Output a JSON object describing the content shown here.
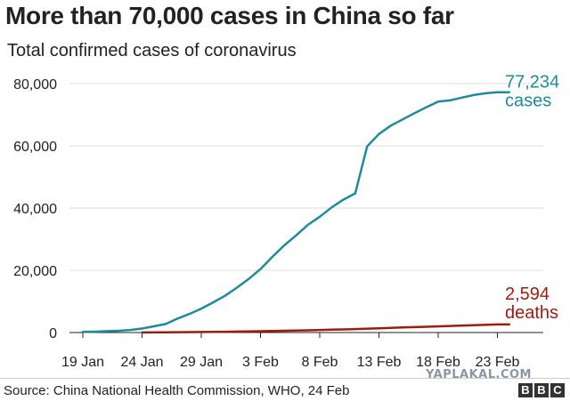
{
  "header": {
    "title": "More than 70,000 cases in China so far",
    "subtitle": "Total confirmed cases of coronavirus"
  },
  "footer": {
    "source": "Source: China National Health Commission, WHO, 24 Feb",
    "watermark": "YAPLAKAL.COM",
    "logo_letters": [
      "B",
      "B",
      "C"
    ]
  },
  "colors": {
    "cases": "#1f8a9b",
    "deaths": "#9b1d10",
    "axis": "#222222"
  },
  "chart_data": {
    "type": "line",
    "title": "More than 70,000 cases in China so far",
    "subtitle": "Total confirmed cases of coronavirus",
    "x_tick_labels": [
      "19 Jan",
      "24 Jan",
      "29 Jan",
      "3 Feb",
      "8 Feb",
      "13 Feb",
      "18 Feb",
      "23 Feb"
    ],
    "y_tick_labels": [
      "0",
      "20,000",
      "40,000",
      "60,000",
      "80,000"
    ],
    "y_ticks": [
      0,
      20000,
      40000,
      60000,
      80000
    ],
    "ylim": [
      0,
      85000
    ],
    "series": [
      {
        "key": "cases",
        "end_value_label": "77,234",
        "end_name_label": "cases",
        "points": [
          [
            "19 Jan",
            200
          ],
          [
            "20 Jan",
            290
          ],
          [
            "21 Jan",
            440
          ],
          [
            "22 Jan",
            570
          ],
          [
            "23 Jan",
            830
          ],
          [
            "24 Jan",
            1290
          ],
          [
            "25 Jan",
            2000
          ],
          [
            "26 Jan",
            2740
          ],
          [
            "27 Jan",
            4500
          ],
          [
            "28 Jan",
            5970
          ],
          [
            "29 Jan",
            7700
          ],
          [
            "30 Jan",
            9700
          ],
          [
            "31 Jan",
            11800
          ],
          [
            "1 Feb",
            14400
          ],
          [
            "2 Feb",
            17200
          ],
          [
            "3 Feb",
            20400
          ],
          [
            "4 Feb",
            24300
          ],
          [
            "5 Feb",
            28000
          ],
          [
            "6 Feb",
            31200
          ],
          [
            "7 Feb",
            34600
          ],
          [
            "8 Feb",
            37200
          ],
          [
            "9 Feb",
            40200
          ],
          [
            "10 Feb",
            42700
          ],
          [
            "11 Feb",
            44700
          ],
          [
            "12 Feb",
            59800
          ],
          [
            "13 Feb",
            63800
          ],
          [
            "14 Feb",
            66500
          ],
          [
            "15 Feb",
            68500
          ],
          [
            "16 Feb",
            70500
          ],
          [
            "17 Feb",
            72400
          ],
          [
            "18 Feb",
            74200
          ],
          [
            "19 Feb",
            74600
          ],
          [
            "20 Feb",
            75500
          ],
          [
            "21 Feb",
            76300
          ],
          [
            "22 Feb",
            76900
          ],
          [
            "23 Feb",
            77200
          ],
          [
            "24 Feb",
            77234
          ]
        ]
      },
      {
        "key": "deaths",
        "end_value_label": "2,594",
        "end_name_label": "deaths",
        "points": [
          [
            "24 Jan",
            41
          ],
          [
            "26 Jan",
            80
          ],
          [
            "28 Jan",
            132
          ],
          [
            "30 Jan",
            213
          ],
          [
            "1 Feb",
            304
          ],
          [
            "3 Feb",
            425
          ],
          [
            "5 Feb",
            564
          ],
          [
            "7 Feb",
            722
          ],
          [
            "9 Feb",
            908
          ],
          [
            "11 Feb",
            1113
          ],
          [
            "13 Feb",
            1380
          ],
          [
            "15 Feb",
            1665
          ],
          [
            "17 Feb",
            1868
          ],
          [
            "19 Feb",
            2118
          ],
          [
            "21 Feb",
            2345
          ],
          [
            "23 Feb",
            2592
          ],
          [
            "24 Feb",
            2594
          ]
        ]
      }
    ]
  }
}
